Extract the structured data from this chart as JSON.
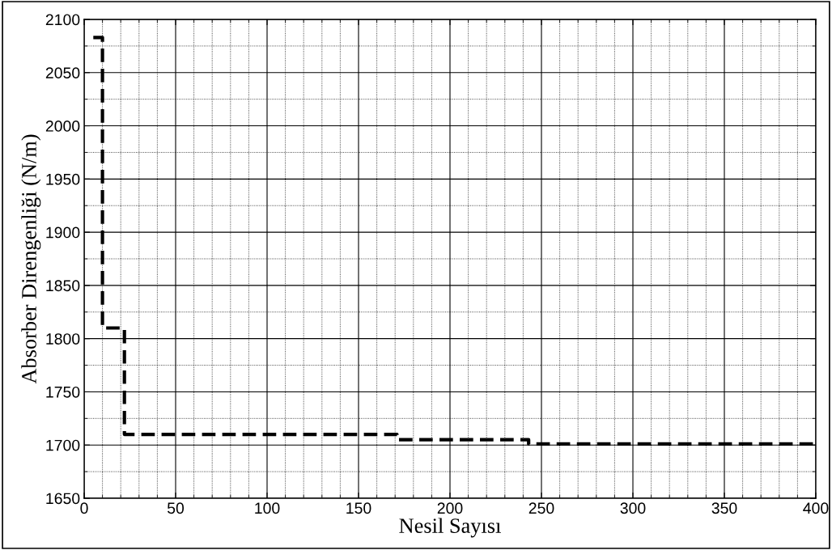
{
  "chart_data": {
    "type": "step",
    "xlabel": "Nesil Sayısı",
    "ylabel": "Absorber Direngenliği (N/m)",
    "series": [
      {
        "color": "#000000",
        "x": [
          5,
          10,
          22,
          171,
          243,
          400
        ],
        "values": [
          2083,
          1810,
          1710,
          1705,
          1701,
          1701
        ],
        "line_style": "dashed"
      }
    ],
    "xlim": [
      0,
      400
    ],
    "xticks": [
      0,
      50,
      100,
      150,
      200,
      250,
      300,
      350,
      400
    ],
    "ylim": [
      1650,
      2100
    ],
    "yticks": [
      1650,
      1700,
      1750,
      1800,
      1850,
      1900,
      1950,
      2000,
      2050,
      2100
    ],
    "grid": true,
    "marker": "none"
  }
}
